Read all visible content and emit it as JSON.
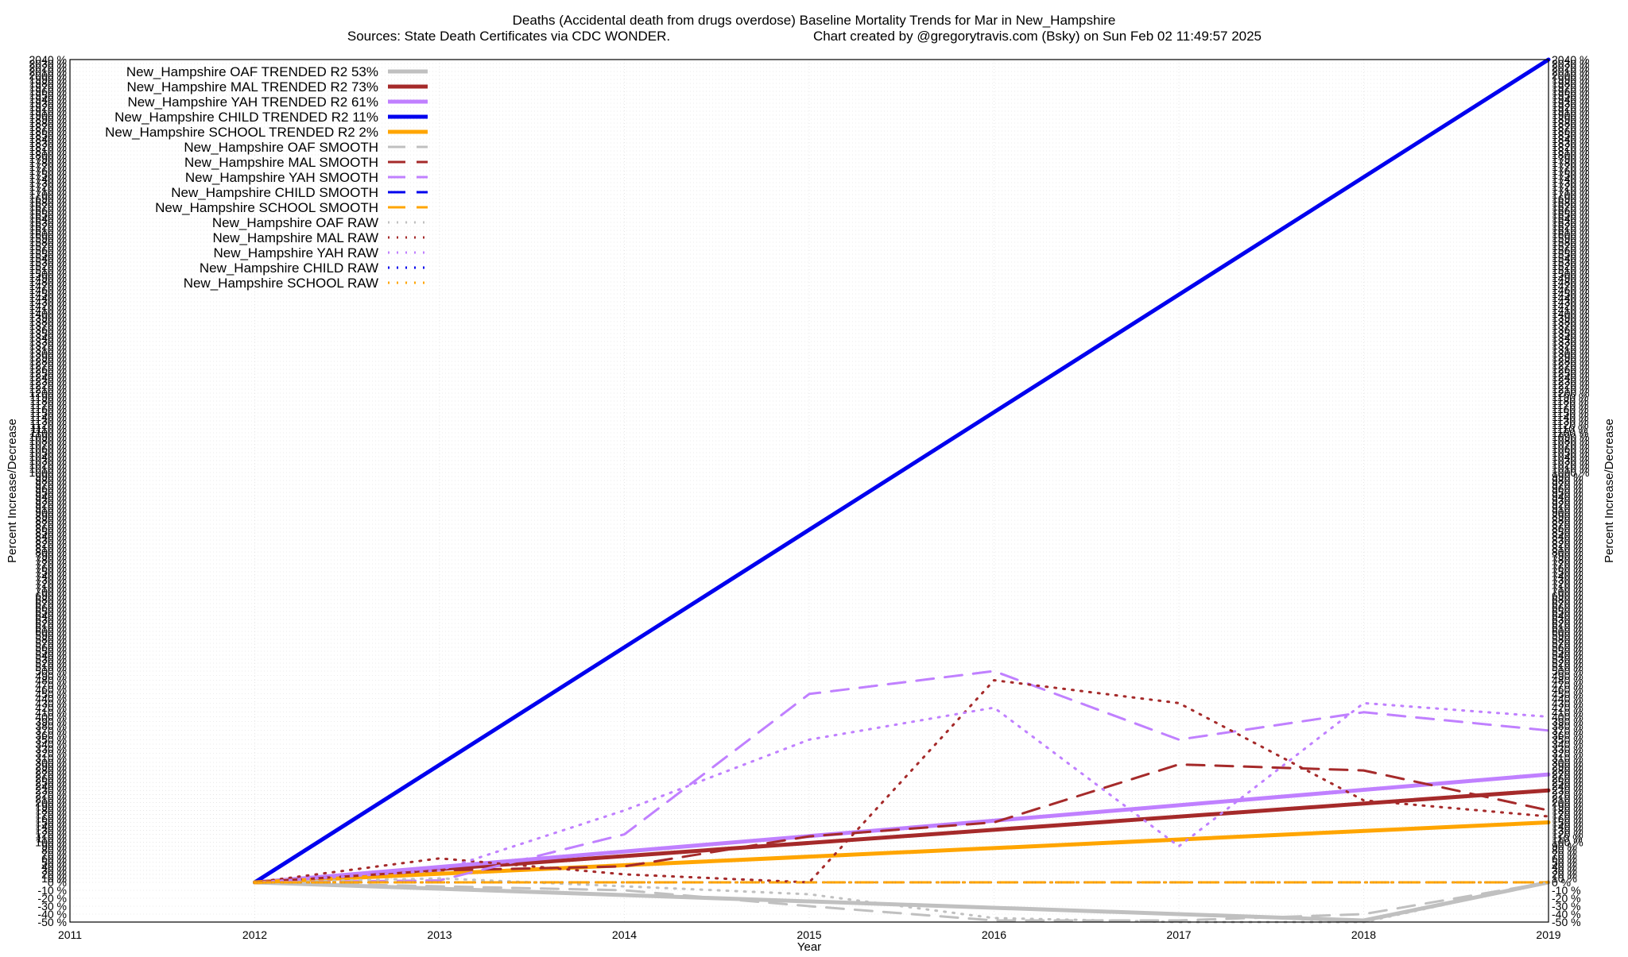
{
  "chart_data": {
    "type": "line",
    "title": "Deaths (Accidental death from drugs overdose)  Baseline Mortality Trends for Mar in New_Hampshire",
    "subtitle_left": "Sources: State Death Certificates via CDC WONDER.",
    "subtitle_right": "Chart created by @gregorytravis.com (Bsky) on Sun Feb 02 11:49:57 2025",
    "xlabel": "Year",
    "ylabel": "Percent Increase/Decrease",
    "xlim": [
      2011,
      2019
    ],
    "ylim": [
      -50,
      2040
    ],
    "x_ticks": [
      "2011",
      "2012",
      "2013",
      "2014",
      "2015",
      "2016",
      "2017",
      "2018",
      "2019"
    ],
    "y_tick_step": 10,
    "y_scale": "compressed (ticks every 10%, overlapping labels)",
    "grid": true,
    "legend_position": "top-left",
    "x": [
      2012,
      2013,
      2014,
      2015,
      2016,
      2017,
      2018,
      2019
    ],
    "series": [
      {
        "name": "New_Hampshire OAF TRENDED R2  53%",
        "style": "solid",
        "color": "#c0c0c0",
        "width": 5,
        "x": [
          2012,
          2018,
          2019
        ],
        "values": [
          0,
          -48,
          0
        ]
      },
      {
        "name": "New_Hampshire MAL TRENDED R2  73%",
        "style": "solid",
        "color": "#a52a2a",
        "width": 5,
        "x": [
          2012,
          2019
        ],
        "values": [
          0,
          230
        ]
      },
      {
        "name": "New_Hampshire YAH TRENDED R2  61%",
        "style": "solid",
        "color": "#c080ff",
        "width": 5,
        "x": [
          2012,
          2019
        ],
        "values": [
          0,
          270
        ]
      },
      {
        "name": "New_Hampshire CHILD TRENDED R2  11%",
        "style": "solid",
        "color": "#0000ee",
        "width": 5,
        "x": [
          2012,
          2019
        ],
        "values": [
          0,
          2040
        ]
      },
      {
        "name": "New_Hampshire SCHOOL TRENDED R2  2%",
        "style": "solid",
        "color": "#ffa500",
        "width": 5,
        "x": [
          2012,
          2019
        ],
        "values": [
          0,
          150
        ]
      },
      {
        "name": "New_Hampshire OAF SMOOTH",
        "style": "dashed",
        "color": "#c0c0c0",
        "width": 3,
        "x": [
          2012,
          2013,
          2014,
          2015,
          2016,
          2017,
          2018,
          2019
        ],
        "values": [
          0,
          -5,
          -10,
          -30,
          -48,
          -48,
          -40,
          0
        ]
      },
      {
        "name": "New_Hampshire MAL SMOOTH",
        "style": "dashed",
        "color": "#a52a2a",
        "width": 3,
        "x": [
          2012,
          2013,
          2014,
          2015,
          2016,
          2017,
          2018,
          2019
        ],
        "values": [
          0,
          30,
          40,
          115,
          150,
          295,
          280,
          180
        ]
      },
      {
        "name": "New_Hampshire YAH SMOOTH",
        "style": "dashed",
        "color": "#c080ff",
        "width": 3,
        "x": [
          2012,
          2013,
          2014,
          2015,
          2016,
          2017,
          2018,
          2019
        ],
        "values": [
          0,
          5,
          120,
          450,
          500,
          350,
          410,
          370
        ]
      },
      {
        "name": "New_Hampshire CHILD SMOOTH",
        "style": "dashed",
        "color": "#0000ee",
        "width": 3,
        "x": [
          2012,
          2019
        ],
        "values": [
          0,
          0
        ]
      },
      {
        "name": "New_Hampshire SCHOOL SMOOTH",
        "style": "dashed",
        "color": "#ffa500",
        "width": 3,
        "x": [
          2012,
          2019
        ],
        "values": [
          0,
          0
        ]
      },
      {
        "name": "New_Hampshire OAF RAW",
        "style": "dotted",
        "color": "#c0c0c0",
        "width": 3,
        "x": [
          2012,
          2013,
          2014,
          2015,
          2016,
          2017,
          2018,
          2019
        ],
        "values": [
          0,
          10,
          -5,
          -15,
          -45,
          -50,
          -50,
          0
        ]
      },
      {
        "name": "New_Hampshire MAL RAW",
        "style": "dotted",
        "color": "#a52a2a",
        "width": 3,
        "x": [
          2012,
          2013,
          2014,
          2015,
          2016,
          2017,
          2018,
          2019
        ],
        "values": [
          0,
          60,
          20,
          0,
          480,
          430,
          205,
          165
        ]
      },
      {
        "name": "New_Hampshire YAH RAW",
        "style": "dotted",
        "color": "#c080ff",
        "width": 3,
        "x": [
          2012,
          2013,
          2014,
          2015,
          2016,
          2017,
          2018,
          2019
        ],
        "values": [
          0,
          30,
          180,
          350,
          420,
          90,
          430,
          400
        ]
      },
      {
        "name": "New_Hampshire CHILD RAW",
        "style": "dotted",
        "color": "#0000ee",
        "width": 3,
        "x": [
          2012,
          2019
        ],
        "values": [
          0,
          0
        ]
      },
      {
        "name": "New_Hampshire SCHOOL RAW",
        "style": "dotted",
        "color": "#ffa500",
        "width": 3,
        "x": [
          2012,
          2019
        ],
        "values": [
          0,
          0
        ]
      }
    ]
  }
}
